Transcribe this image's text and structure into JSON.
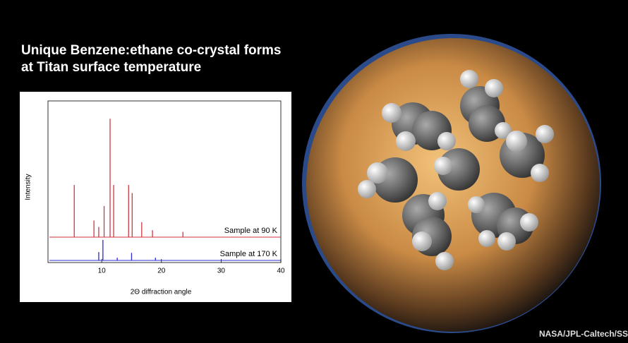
{
  "chart_data": {
    "type": "spectrum",
    "title": "Unique Benzene:ethane co-crystal forms at Titan surface temperature",
    "xlabel": "2Θ diffraction angle",
    "ylabel": "Intensity",
    "xlim": [
      1,
      40
    ],
    "ylim": [
      0,
      100
    ],
    "xticks": [
      10,
      20,
      30,
      40
    ],
    "series": [
      {
        "name": "Sample at 90 K",
        "color": "#d0353f",
        "baseline": 15.7,
        "x": [
          5.4,
          8.7,
          9.5,
          10.4,
          11.4,
          12.0,
          14.5,
          15.1,
          16.7,
          18.5,
          23.6
        ],
        "values": [
          48,
          26,
          22,
          35,
          89,
          48,
          48,
          43,
          25,
          20,
          19
        ]
      },
      {
        "name": "Sample at 170 K",
        "color": "#2a2ad0",
        "baseline": 1.3,
        "x": [
          9.5,
          10.2,
          12.6,
          15.0,
          19.0
        ],
        "values": [
          6.5,
          14,
          3,
          6,
          3
        ]
      }
    ],
    "annotations": [
      "NASA/JPL-Caltech/SS"
    ]
  }
}
